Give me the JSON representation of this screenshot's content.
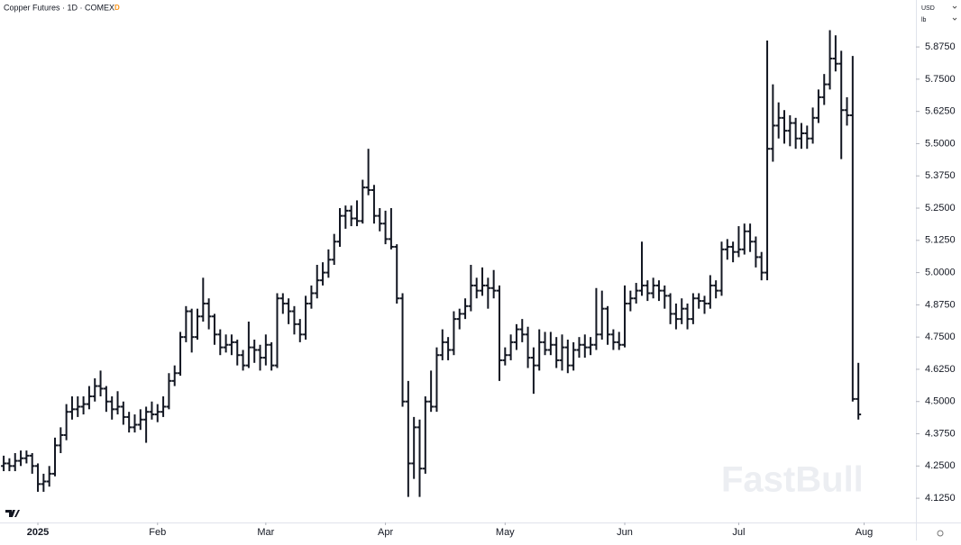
{
  "header": {
    "title": "Copper Futures · 1D · COMEX",
    "badge": "D",
    "currency": "USD",
    "unit": "lb"
  },
  "watermark": "FastBull",
  "chart_data": {
    "type": "ohlc",
    "color": "#131722",
    "xlim": [
      -0.65,
      160.1
    ],
    "xticks": [
      {
        "value": 6,
        "label": "2025"
      },
      {
        "value": 27,
        "label": "Feb"
      },
      {
        "value": 46,
        "label": "Mar"
      },
      {
        "value": 67,
        "label": "Apr"
      },
      {
        "value": 88,
        "label": "May"
      },
      {
        "value": 109,
        "label": "Jun"
      },
      {
        "value": 129,
        "label": "Jul"
      },
      {
        "value": 151,
        "label": "Aug"
      }
    ],
    "ylim": [
      4.031,
      6.057
    ],
    "yticks": [
      {
        "value": 4.125,
        "label": "4.1250"
      },
      {
        "value": 4.25,
        "label": "4.2500"
      },
      {
        "value": 4.375,
        "label": "4.3750"
      },
      {
        "value": 4.5,
        "label": "4.5000"
      },
      {
        "value": 4.625,
        "label": "4.6250"
      },
      {
        "value": 4.75,
        "label": "4.7500"
      },
      {
        "value": 4.875,
        "label": "4.8750"
      },
      {
        "value": 5,
        "label": "5.0000"
      },
      {
        "value": 5.125,
        "label": "5.1250"
      },
      {
        "value": 5.25,
        "label": "5.2500"
      },
      {
        "value": 5.375,
        "label": "5.3750"
      },
      {
        "value": 5.5,
        "label": "5.5000"
      },
      {
        "value": 5.625,
        "label": "5.6250"
      },
      {
        "value": 5.75,
        "label": "5.7500"
      },
      {
        "value": 5.875,
        "label": "5.8750"
      }
    ],
    "ohlc": [
      [
        4.25,
        4.29,
        4.23,
        4.26
      ],
      [
        4.26,
        4.28,
        4.23,
        4.25
      ],
      [
        4.25,
        4.3,
        4.23,
        4.27
      ],
      [
        4.27,
        4.31,
        4.25,
        4.28
      ],
      [
        4.28,
        4.31,
        4.26,
        4.29
      ],
      [
        4.29,
        4.3,
        4.22,
        4.25
      ],
      [
        4.25,
        4.26,
        4.15,
        4.18
      ],
      [
        4.18,
        4.22,
        4.15,
        4.19
      ],
      [
        4.19,
        4.25,
        4.17,
        4.22
      ],
      [
        4.22,
        4.36,
        4.21,
        4.33
      ],
      [
        4.33,
        4.4,
        4.3,
        4.37
      ],
      [
        4.37,
        4.49,
        4.35,
        4.46
      ],
      [
        4.46,
        4.52,
        4.43,
        4.47
      ],
      [
        4.47,
        4.52,
        4.44,
        4.48
      ],
      [
        4.48,
        4.52,
        4.45,
        4.49
      ],
      [
        4.49,
        4.56,
        4.47,
        4.52
      ],
      [
        4.52,
        4.59,
        4.5,
        4.56
      ],
      [
        4.56,
        4.62,
        4.52,
        4.55
      ],
      [
        4.55,
        4.56,
        4.46,
        4.5
      ],
      [
        4.5,
        4.52,
        4.43,
        4.47
      ],
      [
        4.47,
        4.54,
        4.45,
        4.48
      ],
      [
        4.48,
        4.5,
        4.41,
        4.44
      ],
      [
        4.44,
        4.46,
        4.38,
        4.4
      ],
      [
        4.4,
        4.45,
        4.38,
        4.41
      ],
      [
        4.41,
        4.47,
        4.39,
        4.43
      ],
      [
        4.43,
        4.48,
        4.34,
        4.46
      ],
      [
        4.46,
        4.5,
        4.43,
        4.45
      ],
      [
        4.45,
        4.49,
        4.42,
        4.46
      ],
      [
        4.46,
        4.52,
        4.44,
        4.48
      ],
      [
        4.48,
        4.61,
        4.47,
        4.58
      ],
      [
        4.58,
        4.64,
        4.56,
        4.61
      ],
      [
        4.61,
        4.77,
        4.6,
        4.75
      ],
      [
        4.75,
        4.87,
        4.73,
        4.85
      ],
      [
        4.85,
        4.86,
        4.69,
        4.75
      ],
      [
        4.75,
        4.86,
        4.74,
        4.83
      ],
      [
        4.83,
        4.98,
        4.81,
        4.88
      ],
      [
        4.88,
        4.9,
        4.78,
        4.83
      ],
      [
        4.83,
        4.84,
        4.72,
        4.76
      ],
      [
        4.76,
        4.78,
        4.68,
        4.71
      ],
      [
        4.71,
        4.76,
        4.69,
        4.72
      ],
      [
        4.72,
        4.76,
        4.68,
        4.73
      ],
      [
        4.73,
        4.74,
        4.64,
        4.68
      ],
      [
        4.68,
        4.7,
        4.62,
        4.64
      ],
      [
        4.64,
        4.81,
        4.63,
        4.71
      ],
      [
        4.71,
        4.74,
        4.65,
        4.7
      ],
      [
        4.7,
        4.72,
        4.62,
        4.67
      ],
      [
        4.67,
        4.76,
        4.64,
        4.72
      ],
      [
        4.72,
        4.73,
        4.62,
        4.64
      ],
      [
        4.64,
        4.92,
        4.63,
        4.9
      ],
      [
        4.9,
        4.92,
        4.84,
        4.88
      ],
      [
        4.88,
        4.9,
        4.8,
        4.85
      ],
      [
        4.85,
        4.87,
        4.76,
        4.8
      ],
      [
        4.8,
        4.82,
        4.73,
        4.76
      ],
      [
        4.76,
        4.91,
        4.74,
        4.88
      ],
      [
        4.88,
        4.95,
        4.86,
        4.92
      ],
      [
        4.92,
        5.03,
        4.9,
        4.97
      ],
      [
        4.97,
        5.04,
        4.95,
        5.0
      ],
      [
        5.0,
        5.09,
        4.98,
        5.05
      ],
      [
        5.05,
        5.15,
        5.03,
        5.12
      ],
      [
        5.12,
        5.25,
        5.1,
        5.22
      ],
      [
        5.22,
        5.26,
        5.17,
        5.24
      ],
      [
        5.24,
        5.26,
        5.18,
        5.21
      ],
      [
        5.21,
        5.28,
        5.18,
        5.2
      ],
      [
        5.2,
        5.36,
        5.19,
        5.33
      ],
      [
        5.33,
        5.48,
        5.3,
        5.32
      ],
      [
        5.32,
        5.34,
        5.19,
        5.22
      ],
      [
        5.22,
        5.25,
        5.16,
        5.19
      ],
      [
        5.19,
        5.24,
        5.11,
        5.13
      ],
      [
        5.13,
        5.25,
        5.09,
        5.1
      ],
      [
        5.1,
        5.11,
        4.88,
        4.9
      ],
      [
        4.9,
        4.92,
        4.48,
        4.5
      ],
      [
        4.5,
        4.58,
        4.13,
        4.26
      ],
      [
        4.26,
        4.44,
        4.2,
        4.4
      ],
      [
        4.4,
        4.43,
        4.13,
        4.24
      ],
      [
        4.24,
        4.52,
        4.22,
        4.5
      ],
      [
        4.5,
        4.62,
        4.46,
        4.48
      ],
      [
        4.48,
        4.71,
        4.46,
        4.68
      ],
      [
        4.68,
        4.78,
        4.66,
        4.73
      ],
      [
        4.73,
        4.75,
        4.66,
        4.7
      ],
      [
        4.7,
        4.85,
        4.68,
        4.82
      ],
      [
        4.82,
        4.86,
        4.78,
        4.84
      ],
      [
        4.84,
        4.9,
        4.82,
        4.87
      ],
      [
        4.87,
        5.03,
        4.85,
        4.95
      ],
      [
        4.95,
        4.98,
        4.9,
        4.93
      ],
      [
        4.93,
        5.02,
        4.91,
        4.95
      ],
      [
        4.95,
        4.98,
        4.86,
        4.94
      ],
      [
        4.94,
        5.01,
        4.9,
        4.93
      ],
      [
        4.93,
        4.95,
        4.58,
        4.66
      ],
      [
        4.66,
        4.71,
        4.64,
        4.68
      ],
      [
        4.68,
        4.76,
        4.66,
        4.73
      ],
      [
        4.73,
        4.8,
        4.7,
        4.78
      ],
      [
        4.78,
        4.82,
        4.73,
        4.76
      ],
      [
        4.76,
        4.79,
        4.63,
        4.67
      ],
      [
        4.67,
        4.71,
        4.53,
        4.64
      ],
      [
        4.64,
        4.78,
        4.62,
        4.73
      ],
      [
        4.73,
        4.77,
        4.68,
        4.7
      ],
      [
        4.7,
        4.77,
        4.68,
        4.72
      ],
      [
        4.72,
        4.75,
        4.63,
        4.66
      ],
      [
        4.66,
        4.76,
        4.62,
        4.71
      ],
      [
        4.71,
        4.74,
        4.61,
        4.64
      ],
      [
        4.64,
        4.73,
        4.62,
        4.7
      ],
      [
        4.7,
        4.75,
        4.67,
        4.72
      ],
      [
        4.72,
        4.76,
        4.67,
        4.71
      ],
      [
        4.71,
        4.75,
        4.68,
        4.72
      ],
      [
        4.72,
        4.94,
        4.7,
        4.76
      ],
      [
        4.76,
        4.93,
        4.74,
        4.86
      ],
      [
        4.86,
        4.87,
        4.72,
        4.76
      ],
      [
        4.76,
        4.78,
        4.7,
        4.73
      ],
      [
        4.73,
        4.77,
        4.7,
        4.72
      ],
      [
        4.72,
        4.95,
        4.71,
        4.88
      ],
      [
        4.88,
        4.93,
        4.85,
        4.9
      ],
      [
        4.9,
        4.96,
        4.88,
        4.93
      ],
      [
        4.93,
        5.12,
        4.91,
        4.95
      ],
      [
        4.95,
        4.97,
        4.89,
        4.92
      ],
      [
        4.92,
        4.98,
        4.9,
        4.95
      ],
      [
        4.95,
        4.97,
        4.89,
        4.93
      ],
      [
        4.93,
        4.95,
        4.86,
        4.91
      ],
      [
        4.91,
        4.92,
        4.8,
        4.84
      ],
      [
        4.84,
        4.88,
        4.78,
        4.82
      ],
      [
        4.82,
        4.9,
        4.8,
        4.86
      ],
      [
        4.86,
        4.88,
        4.78,
        4.82
      ],
      [
        4.82,
        4.92,
        4.8,
        4.9
      ],
      [
        4.9,
        4.92,
        4.86,
        4.89
      ],
      [
        4.89,
        4.91,
        4.84,
        4.88
      ],
      [
        4.88,
        4.99,
        4.86,
        4.95
      ],
      [
        4.95,
        4.97,
        4.9,
        4.93
      ],
      [
        4.93,
        5.12,
        4.91,
        5.09
      ],
      [
        5.09,
        5.13,
        5.05,
        5.1
      ],
      [
        5.1,
        5.12,
        5.04,
        5.08
      ],
      [
        5.08,
        5.18,
        5.06,
        5.09
      ],
      [
        5.09,
        5.19,
        5.07,
        5.16
      ],
      [
        5.16,
        5.19,
        5.08,
        5.12
      ],
      [
        5.12,
        5.14,
        5.02,
        5.06
      ],
      [
        5.06,
        5.08,
        4.97,
        5.0
      ],
      [
        5.0,
        5.9,
        4.97,
        5.48
      ],
      [
        5.48,
        5.73,
        5.43,
        5.57
      ],
      [
        5.57,
        5.66,
        5.52,
        5.6
      ],
      [
        5.6,
        5.63,
        5.5,
        5.55
      ],
      [
        5.55,
        5.61,
        5.49,
        5.58
      ],
      [
        5.58,
        5.6,
        5.48,
        5.52
      ],
      [
        5.52,
        5.58,
        5.48,
        5.54
      ],
      [
        5.54,
        5.57,
        5.48,
        5.52
      ],
      [
        5.52,
        5.64,
        5.5,
        5.6
      ],
      [
        5.6,
        5.71,
        5.58,
        5.68
      ],
      [
        5.68,
        5.77,
        5.65,
        5.73
      ],
      [
        5.73,
        5.94,
        5.71,
        5.83
      ],
      [
        5.83,
        5.92,
        5.78,
        5.81
      ],
      [
        5.81,
        5.86,
        5.44,
        5.63
      ],
      [
        5.63,
        5.68,
        5.57,
        5.61
      ],
      [
        5.61,
        5.84,
        4.5,
        4.51
      ],
      [
        4.51,
        4.65,
        4.43,
        4.45
      ]
    ]
  }
}
